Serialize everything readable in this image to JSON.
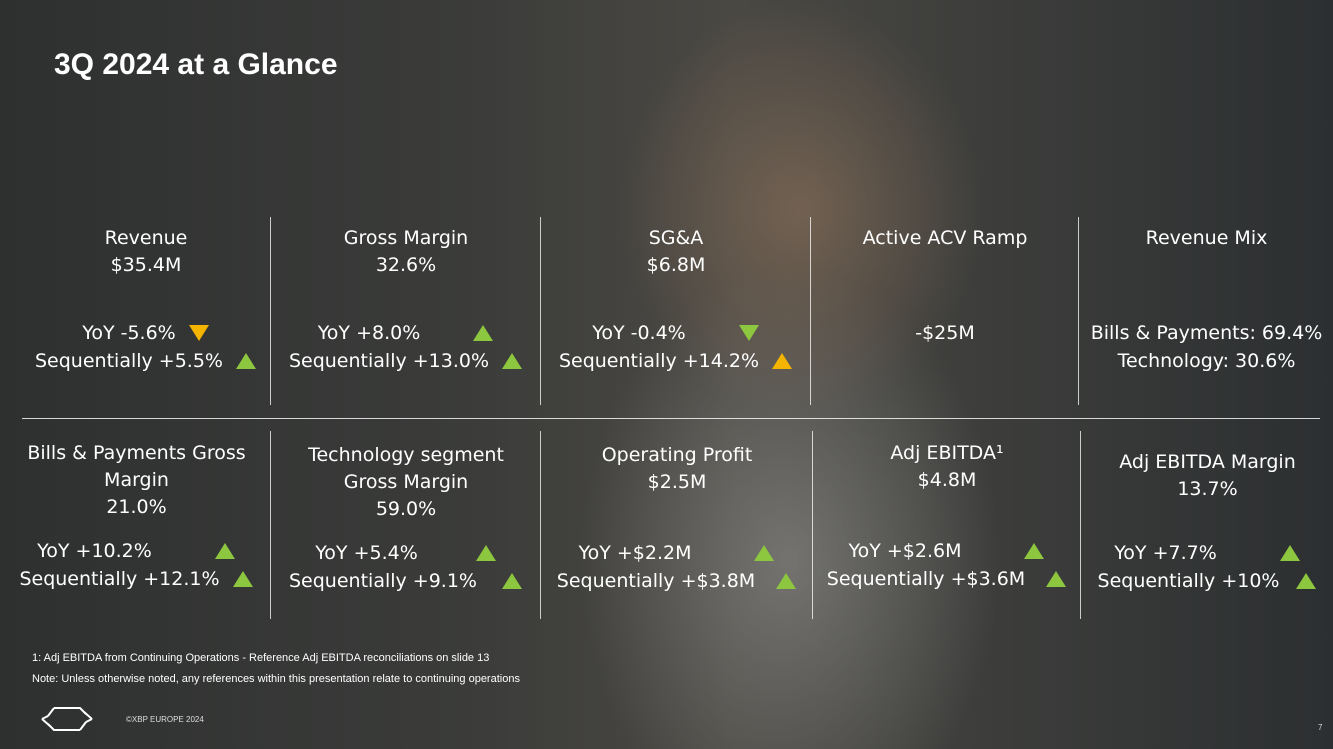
{
  "title": "3Q 2024 at a Glance",
  "colors": {
    "up": "#8dc63f",
    "down_green": "#8dc63f",
    "down_amber": "#f5b400",
    "up_amber": "#f5b400"
  },
  "top": [
    {
      "h1": "Revenue",
      "h2": "$35.4M",
      "l1": "YoY -5.6%",
      "l1_icon": "down-amber",
      "l2": "Sequentially +5.5%",
      "l2_icon": "up-green"
    },
    {
      "h1": "Gross Margin",
      "h2": "32.6%",
      "l1": "YoY  +8.0%",
      "l1_icon": "up-green",
      "l2": "Sequentially +13.0%",
      "l2_icon": "up-green"
    },
    {
      "h1": "SG&A",
      "h2": "$6.8M",
      "l1": "YoY -0.4%",
      "l1_icon": "down-green",
      "l2": "Sequentially +14.2%",
      "l2_icon": "up-amber"
    },
    {
      "h1": "Active ACV Ramp",
      "value": "-$25M"
    },
    {
      "h1": "Revenue Mix",
      "l1": "Bills & Payments: 69.4%",
      "l2": "Technology: 30.6%"
    }
  ],
  "bottom": [
    {
      "h1": "Bills & Payments Gross",
      "h2": "Margin",
      "h3": "21.0%",
      "l1": "YoY  +10.2%",
      "l2": "Sequentially +12.1%"
    },
    {
      "h1": "Technology segment",
      "h2": "Gross Margin",
      "h3": "59.0%",
      "l1": "YoY  +5.4%",
      "l2": "Sequentially +9.1%"
    },
    {
      "h1": "Operating Profit",
      "h2": "$2.5M",
      "l1": "YoY +$2.2M",
      "l2": "Sequentially +$3.8M"
    },
    {
      "h1": "Adj EBITDA¹",
      "h2": "$4.8M",
      "l1": "YoY  +$2.6M",
      "l2": "Sequentially +$3.6M"
    },
    {
      "h1": "Adj EBITDA Margin",
      "h2": "13.7%",
      "l1": "YoY  +7.7%",
      "l2": "Sequentially +10%"
    }
  ],
  "footnote1": "1: Adj EBITDA from Continuing Operations - Reference Adj EBITDA reconciliations on slide 13",
  "footnote2": "Note: Unless otherwise noted, any references within this presentation relate to continuing operations",
  "copyright": "©XBP EUROPE 2024",
  "page_number": "7",
  "logo_icon": "xbp-arrows-logo"
}
